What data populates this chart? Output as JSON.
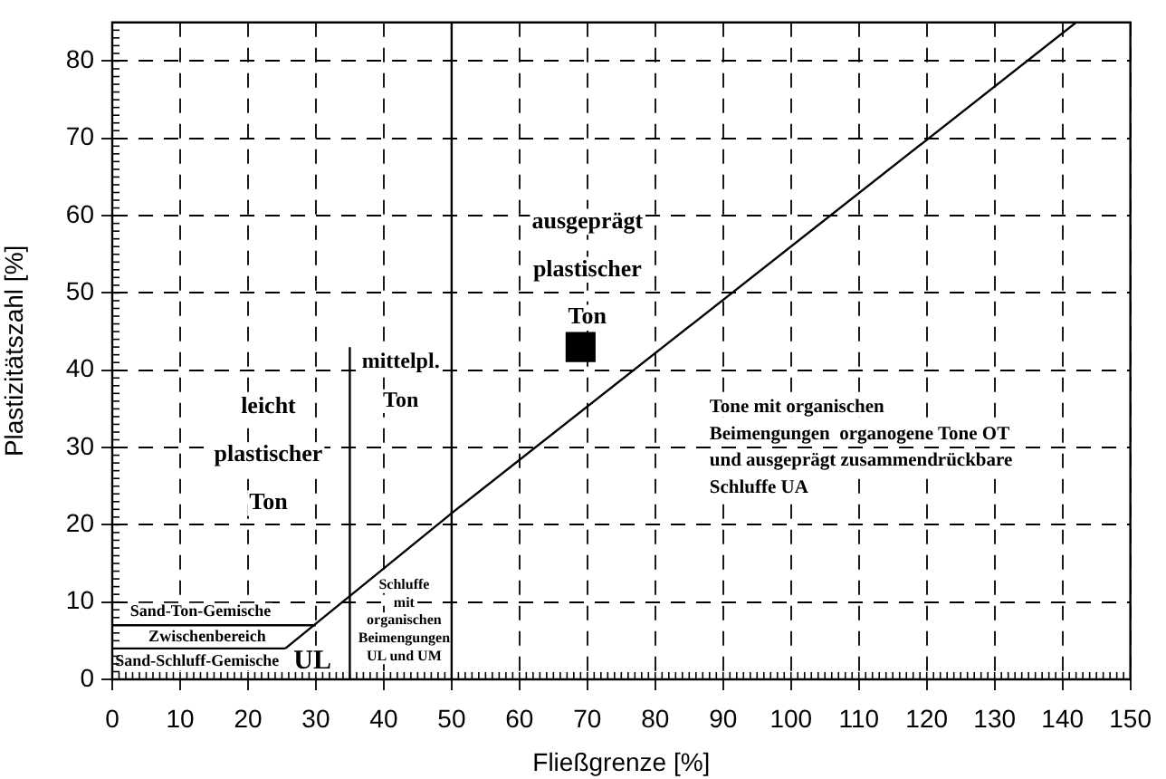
{
  "chart_data": {
    "type": "scatter",
    "xlabel": "Fließgrenze [%]",
    "ylabel": "Plastizitätszahl [%]",
    "xlim": [
      0,
      150
    ],
    "xticks": [
      0,
      10,
      20,
      30,
      40,
      50,
      60,
      70,
      80,
      90,
      100,
      110,
      120,
      130,
      140,
      150
    ],
    "ylim": [
      0,
      85
    ],
    "yticks": [
      0,
      10,
      20,
      30,
      40,
      50,
      60,
      70,
      80
    ],
    "grid": true,
    "legend": false,
    "series": [
      {
        "type": "scatter",
        "x": [
          69
        ],
        "values": [
          43
        ],
        "color": "#000000",
        "marker": "square"
      },
      {
        "type": "line",
        "x": [
          25.5,
          50,
          142
        ],
        "values": [
          4,
          21.5,
          85
        ],
        "color": "#000000",
        "marker": "none",
        "line_style": "solid"
      },
      {
        "type": "line",
        "x": [
          0,
          30
        ],
        "values": [
          7,
          7
        ],
        "color": "#000000",
        "marker": "none",
        "line_style": "solid"
      },
      {
        "type": "line",
        "x": [
          0,
          25.5
        ],
        "values": [
          4,
          4
        ],
        "color": "#000000",
        "marker": "none",
        "line_style": "solid"
      },
      {
        "type": "line",
        "x": [
          35,
          35
        ],
        "values": [
          0,
          43
        ],
        "color": "#000000",
        "marker": "none",
        "line_style": "solid"
      }
    ],
    "ref_lines": [
      {
        "axis": "x",
        "value": 50,
        "color": "#000000",
        "line_style": "solid"
      }
    ],
    "annotations": [
      "ausgeprägt\nplastischer\nTon",
      "leicht\nplastischer\nTon",
      "mittelpl.\nTon",
      "Tone mit organischen\nBeimengungen  organogene Tone OT\nund ausgeprägt zusammendrückbare\nSchluffe UA",
      "Schluffe\nmit\norganischen\nBeimengungen\nUL und UM",
      "Sand-Ton-Gemische",
      "Zwischenbereich",
      "Sand-Schluff-Gemische",
      "UL"
    ]
  }
}
